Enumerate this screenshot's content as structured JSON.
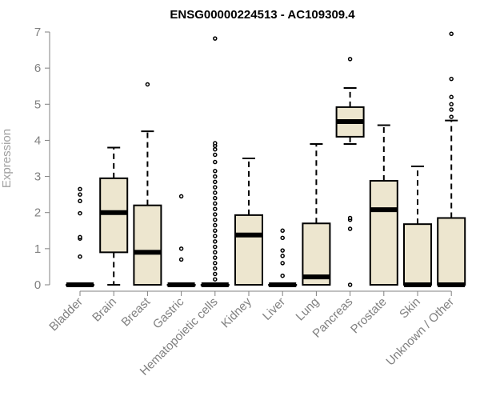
{
  "chart_data": {
    "type": "boxplot",
    "title": "ENSG00000224513 - AC109309.4",
    "xlabel": "",
    "ylabel": "Expression",
    "ylim": [
      0,
      7
    ],
    "yticks": [
      0,
      1,
      2,
      3,
      4,
      5,
      6,
      7
    ],
    "grid": false,
    "colors": {
      "box_fill": "#ede6cf",
      "stroke": "#000000",
      "axis": "#808080"
    },
    "categories": [
      "Bladder",
      "Brain",
      "Breast",
      "Gastric",
      "Hematopoietic cells",
      "Kidney",
      "Liver",
      "Lung",
      "Pancreas",
      "Prostate",
      "Skin",
      "Unknown / Other"
    ],
    "boxes": [
      {
        "category": "Bladder",
        "whisker_low": 0,
        "q1": 0,
        "median": 0,
        "q3": 0,
        "whisker_high": 0,
        "outliers": [
          0.78,
          1.28,
          1.32,
          1.98,
          2.32,
          2.5,
          2.65
        ]
      },
      {
        "category": "Brain",
        "whisker_low": 0,
        "q1": 0.9,
        "median": 2.0,
        "q3": 2.95,
        "whisker_high": 3.8,
        "outliers": []
      },
      {
        "category": "Breast",
        "whisker_low": 0,
        "q1": 0,
        "median": 0.9,
        "q3": 2.2,
        "whisker_high": 4.25,
        "outliers": [
          5.55
        ]
      },
      {
        "category": "Gastric",
        "whisker_low": 0,
        "q1": 0,
        "median": 0,
        "q3": 0,
        "whisker_high": 0,
        "outliers": [
          0.7,
          1.0,
          2.45
        ]
      },
      {
        "category": "Hematopoietic cells",
        "whisker_low": 0,
        "q1": 0,
        "median": 0,
        "q3": 0,
        "whisker_high": 0,
        "outliers": [
          0.15,
          0.3,
          0.45,
          0.6,
          0.75,
          0.9,
          1.05,
          1.2,
          1.35,
          1.5,
          1.65,
          1.8,
          1.95,
          2.1,
          2.25,
          2.4,
          2.55,
          2.7,
          2.85,
          3.0,
          3.15,
          3.4,
          3.6,
          3.75,
          3.85,
          3.92,
          6.82
        ]
      },
      {
        "category": "Kidney",
        "whisker_low": 0,
        "q1": 0,
        "median": 1.38,
        "q3": 1.93,
        "whisker_high": 3.5,
        "outliers": []
      },
      {
        "category": "Liver",
        "whisker_low": 0,
        "q1": 0,
        "median": 0,
        "q3": 0,
        "whisker_high": 0,
        "outliers": [
          0.25,
          0.6,
          0.8,
          0.95,
          1.3,
          1.5
        ]
      },
      {
        "category": "Lung",
        "whisker_low": 0,
        "q1": 0,
        "median": 0.22,
        "q3": 1.7,
        "whisker_high": 3.9,
        "outliers": []
      },
      {
        "category": "Pancreas",
        "whisker_low": 3.9,
        "q1": 4.1,
        "median": 4.52,
        "q3": 4.92,
        "whisker_high": 5.45,
        "outliers": [
          0,
          1.55,
          1.8,
          1.85,
          6.25
        ]
      },
      {
        "category": "Prostate",
        "whisker_low": 0,
        "q1": 0,
        "median": 2.08,
        "q3": 2.88,
        "whisker_high": 4.42,
        "outliers": []
      },
      {
        "category": "Skin",
        "whisker_low": 0,
        "q1": 0,
        "median": 0,
        "q3": 1.68,
        "whisker_high": 3.28,
        "outliers": []
      },
      {
        "category": "Unknown / Other",
        "whisker_low": 0,
        "q1": 0,
        "median": 0,
        "q3": 1.85,
        "whisker_high": 4.55,
        "outliers": [
          4.65,
          4.85,
          5.0,
          5.2,
          5.7,
          6.95
        ]
      }
    ]
  }
}
